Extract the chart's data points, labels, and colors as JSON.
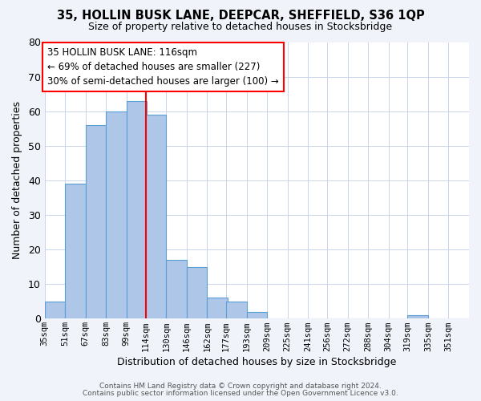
{
  "title": "35, HOLLIN BUSK LANE, DEEPCAR, SHEFFIELD, S36 1QP",
  "subtitle": "Size of property relative to detached houses in Stocksbridge",
  "xlabel": "Distribution of detached houses by size in Stocksbridge",
  "ylabel": "Number of detached properties",
  "bar_values": [
    5,
    39,
    56,
    60,
    63,
    59,
    17,
    15,
    6,
    5,
    2,
    0,
    0,
    0,
    0,
    0,
    0,
    0,
    1,
    0,
    0
  ],
  "bin_labels": [
    "35sqm",
    "51sqm",
    "67sqm",
    "83sqm",
    "99sqm",
    "114sqm",
    "130sqm",
    "146sqm",
    "162sqm",
    "177sqm",
    "193sqm",
    "209sqm",
    "225sqm",
    "241sqm",
    "256sqm",
    "272sqm",
    "288sqm",
    "304sqm",
    "319sqm",
    "335sqm",
    "351sqm"
  ],
  "bin_edges": [
    35,
    51,
    67,
    83,
    99,
    114,
    130,
    146,
    162,
    177,
    193,
    209,
    225,
    241,
    256,
    272,
    288,
    304,
    319,
    335,
    351
  ],
  "bar_color": "#aec6e8",
  "bar_edge_color": "#5a9fd4",
  "ylim": [
    0,
    80
  ],
  "yticks": [
    0,
    10,
    20,
    30,
    40,
    50,
    60,
    70,
    80
  ],
  "vline_x": 114,
  "vline_color": "red",
  "annotation_text": "35 HOLLIN BUSK LANE: 116sqm\n← 69% of detached houses are smaller (227)\n30% of semi-detached houses are larger (100) →",
  "annotation_box_color": "white",
  "annotation_box_edge": "red",
  "footer1": "Contains HM Land Registry data © Crown copyright and database right 2024.",
  "footer2": "Contains public sector information licensed under the Open Government Licence v3.0.",
  "bg_color": "#f0f4fa",
  "plot_bg_color": "#ffffff",
  "grid_color": "#c8d4e8"
}
